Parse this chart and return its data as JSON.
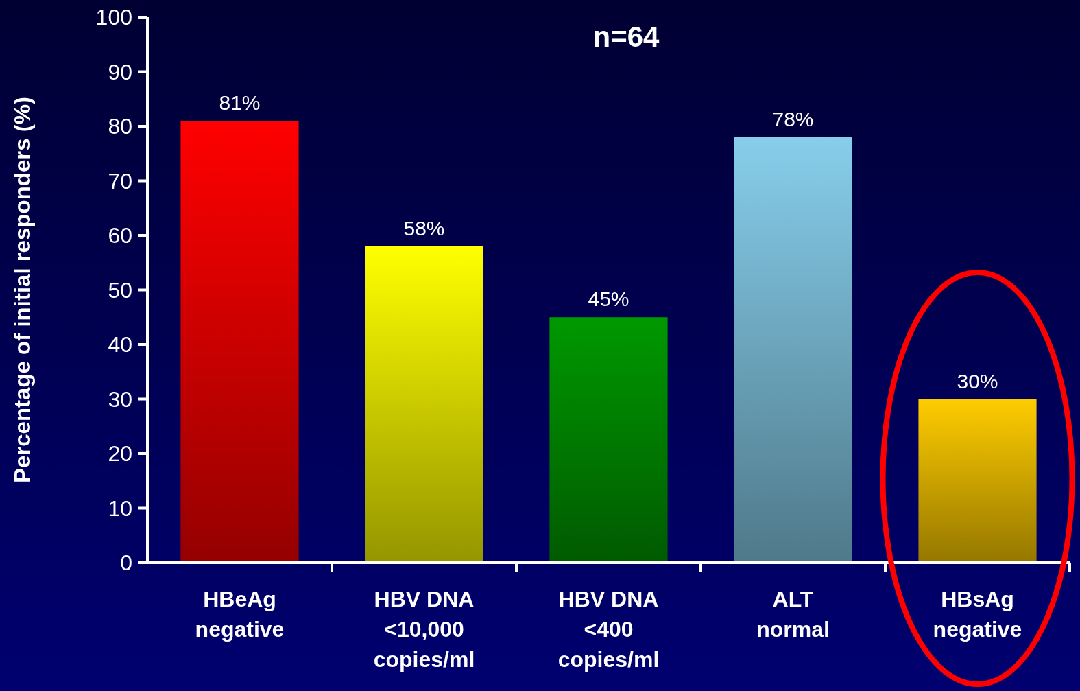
{
  "chart_data": {
    "type": "bar",
    "title": "n=64",
    "ylabel": "Percentage of initial responders (%)",
    "categories": [
      "HBeAg\nnegative",
      "HBV DNA\n<10,000\ncopies/ml",
      "HBV DNA\n<400\ncopies/ml",
      "ALT\nnormal",
      "HBsAg\nnegative"
    ],
    "values": [
      81,
      58,
      45,
      78,
      30
    ],
    "value_labels": [
      "81%",
      "58%",
      "45%",
      "78%",
      "30%"
    ],
    "colors": [
      "#ff0000",
      "#ffff00",
      "#009900",
      "#87ceeb",
      "#ffcc00"
    ],
    "ylim": [
      0,
      100
    ],
    "yticks": [
      0,
      10,
      20,
      30,
      40,
      50,
      60,
      70,
      80,
      90,
      100
    ],
    "grid": false
  }
}
